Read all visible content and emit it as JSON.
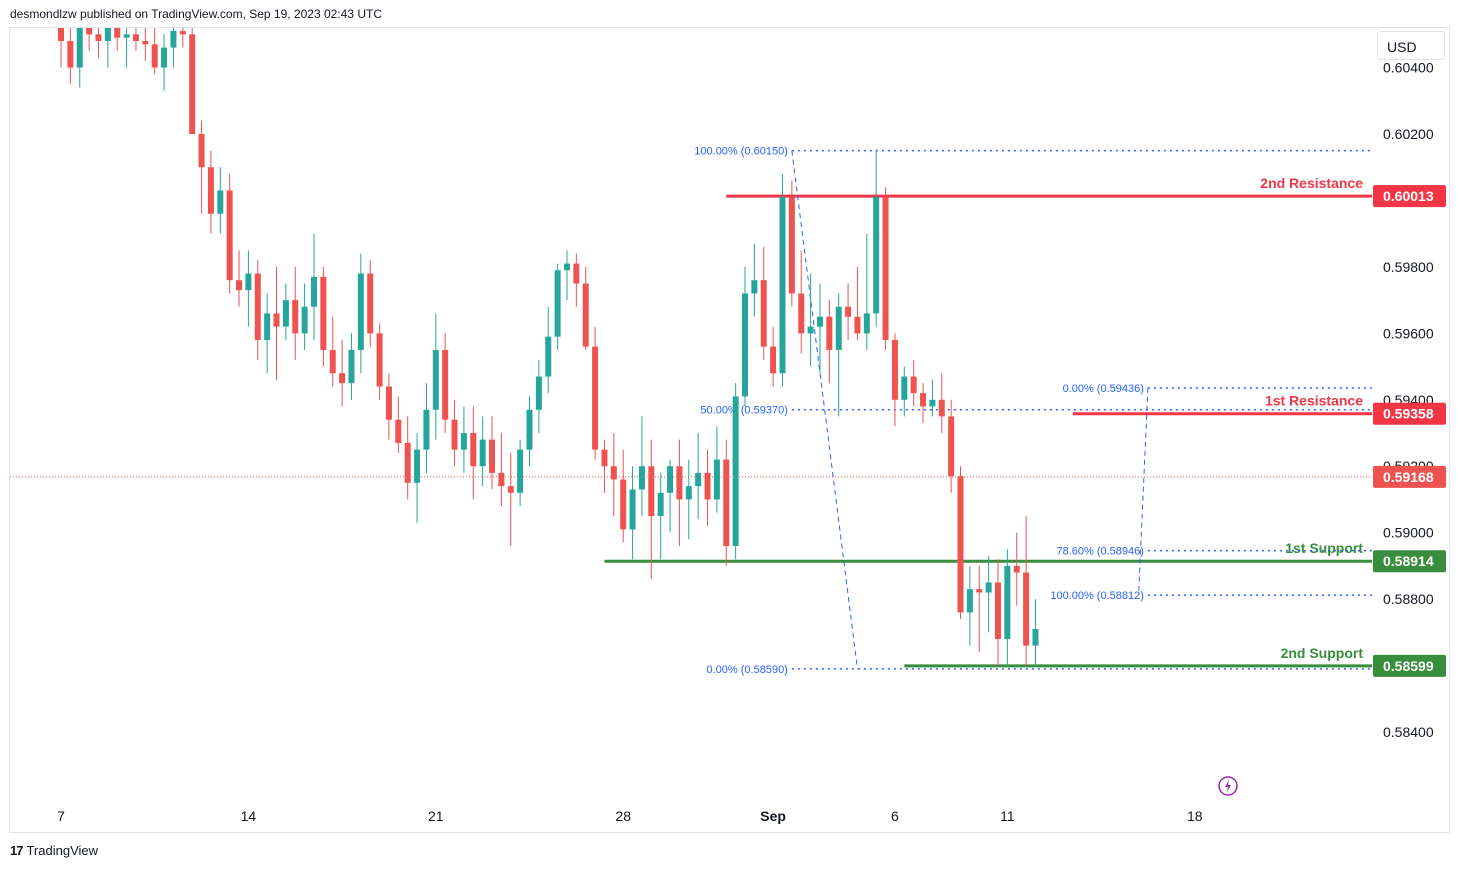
{
  "header": {
    "published_text": "desmondlzw published on TradingView.com, Sep 19, 2023 02:43 UTC"
  },
  "currency_button": {
    "label": "USD"
  },
  "footer": {
    "brand": "TradingView",
    "logo_glyph": "17"
  },
  "colors": {
    "up": "#26a69a",
    "down": "#ef5350",
    "resistance": "#f23645",
    "support": "#388e3c",
    "fib": "#2962ff",
    "fib_text": "#2962ff",
    "price_line": "#ef5350"
  },
  "chart_data": {
    "type": "candlestick",
    "y_axis": {
      "ylim": [
        0.5825,
        0.6045
      ],
      "ticks": [
        "0.60400",
        "0.60200",
        "0.59800",
        "0.59600",
        "0.59400",
        "0.59200",
        "0.59000",
        "0.58800",
        "0.58400"
      ],
      "tick_values": [
        0.604,
        0.602,
        0.598,
        0.596,
        0.594,
        0.592,
        0.59,
        0.588,
        0.584
      ]
    },
    "x_axis": {
      "labels": [
        "7",
        "14",
        "21",
        "28",
        "Sep",
        "6",
        "11",
        "18"
      ],
      "label_bars": [
        0,
        20,
        40,
        60,
        76,
        89,
        101,
        121
      ]
    },
    "levels": [
      {
        "name": "2nd Resistance",
        "label": "2nd Resistance",
        "value": 0.60013,
        "badge": "0.60013",
        "kind": "resistance",
        "from_bar": 71
      },
      {
        "name": "1st Resistance",
        "label": "1st Resistance",
        "value": 0.59358,
        "badge": "0.59358",
        "kind": "resistance",
        "from_bar": 108
      },
      {
        "name": "1st Support",
        "label": "1st Support",
        "value": 0.58914,
        "badge": "0.58914",
        "kind": "support",
        "from_bar": 58
      },
      {
        "name": "2nd Support",
        "label": "2nd Support",
        "value": 0.58599,
        "badge": "0.58599",
        "kind": "support",
        "from_bar": 90
      }
    ],
    "last_price": {
      "value": 0.59168,
      "badge": "0.59168"
    },
    "fib_levels": [
      {
        "label": "100.00% (0.60150)",
        "value": 0.6015,
        "from_bar": 78,
        "group": "A"
      },
      {
        "label": "50.00% (0.59370)",
        "value": 0.5937,
        "from_bar": 78,
        "group": "A"
      },
      {
        "label": "0.00% (0.58590)",
        "value": 0.5859,
        "from_bar": 78,
        "group": "A"
      },
      {
        "label": "0.00% (0.59436)",
        "value": 0.59436,
        "from_bar": 116,
        "group": "B"
      },
      {
        "label": "78.60% (0.58946)",
        "value": 0.58946,
        "from_bar": 116,
        "group": "B"
      },
      {
        "label": "100.00% (0.58812)",
        "value": 0.58812,
        "from_bar": 116,
        "group": "B"
      }
    ],
    "fib_trendlines": [
      {
        "from": [
          78,
          0.6015
        ],
        "to": [
          85,
          0.5859
        ]
      },
      {
        "from": [
          116,
          0.59436
        ],
        "to": [
          115,
          0.58812
        ]
      }
    ],
    "candles": [
      [
        0.6055,
        0.6065,
        0.604,
        0.6048
      ],
      [
        0.6048,
        0.6052,
        0.6035,
        0.604
      ],
      [
        0.604,
        0.6058,
        0.6034,
        0.6052
      ],
      [
        0.6052,
        0.606,
        0.6045,
        0.605
      ],
      [
        0.605,
        0.6055,
        0.6043,
        0.6048
      ],
      [
        0.6048,
        0.606,
        0.604,
        0.6055
      ],
      [
        0.6055,
        0.6062,
        0.6045,
        0.6049
      ],
      [
        0.6049,
        0.6056,
        0.604,
        0.605
      ],
      [
        0.605,
        0.6058,
        0.6045,
        0.6048
      ],
      [
        0.6048,
        0.6055,
        0.6042,
        0.6047
      ],
      [
        0.6047,
        0.6052,
        0.6038,
        0.604
      ],
      [
        0.604,
        0.605,
        0.6033,
        0.6046
      ],
      [
        0.6046,
        0.6056,
        0.604,
        0.6051
      ],
      [
        0.6051,
        0.6059,
        0.6046,
        0.605
      ],
      [
        0.605,
        0.6055,
        0.602,
        0.602
      ],
      [
        0.602,
        0.6024,
        0.5996,
        0.601
      ],
      [
        0.601,
        0.6015,
        0.599,
        0.5996
      ],
      [
        0.5996,
        0.601,
        0.599,
        0.6003
      ],
      [
        0.6003,
        0.6008,
        0.5972,
        0.5976
      ],
      [
        0.5976,
        0.5985,
        0.5968,
        0.5973
      ],
      [
        0.5973,
        0.5985,
        0.5962,
        0.5978
      ],
      [
        0.5978,
        0.5982,
        0.5952,
        0.5958
      ],
      [
        0.5958,
        0.5972,
        0.5948,
        0.5966
      ],
      [
        0.5966,
        0.598,
        0.5946,
        0.5962
      ],
      [
        0.5962,
        0.5975,
        0.5958,
        0.597
      ],
      [
        0.597,
        0.598,
        0.5952,
        0.596
      ],
      [
        0.596,
        0.5975,
        0.5955,
        0.5968
      ],
      [
        0.5968,
        0.599,
        0.5958,
        0.5977
      ],
      [
        0.5977,
        0.598,
        0.595,
        0.5955
      ],
      [
        0.5955,
        0.5965,
        0.5944,
        0.5948
      ],
      [
        0.5948,
        0.5958,
        0.5938,
        0.5945
      ],
      [
        0.5945,
        0.596,
        0.594,
        0.5955
      ],
      [
        0.5955,
        0.5984,
        0.5948,
        0.5978
      ],
      [
        0.5978,
        0.5982,
        0.5956,
        0.596
      ],
      [
        0.596,
        0.5963,
        0.594,
        0.5944
      ],
      [
        0.5944,
        0.5948,
        0.5928,
        0.5934
      ],
      [
        0.5934,
        0.5941,
        0.5924,
        0.5927
      ],
      [
        0.5927,
        0.5935,
        0.591,
        0.5915
      ],
      [
        0.5915,
        0.593,
        0.5903,
        0.5925
      ],
      [
        0.5925,
        0.5945,
        0.5918,
        0.5937
      ],
      [
        0.5937,
        0.5966,
        0.5928,
        0.5955
      ],
      [
        0.5955,
        0.596,
        0.593,
        0.5934
      ],
      [
        0.5934,
        0.594,
        0.592,
        0.5925
      ],
      [
        0.5925,
        0.5938,
        0.5918,
        0.593
      ],
      [
        0.593,
        0.5938,
        0.591,
        0.592
      ],
      [
        0.592,
        0.5935,
        0.5914,
        0.5928
      ],
      [
        0.5928,
        0.5935,
        0.5913,
        0.5918
      ],
      [
        0.5918,
        0.593,
        0.5908,
        0.5914
      ],
      [
        0.5914,
        0.5924,
        0.5896,
        0.5912
      ],
      [
        0.5912,
        0.5928,
        0.5908,
        0.5925
      ],
      [
        0.5925,
        0.5941,
        0.592,
        0.5937
      ],
      [
        0.5937,
        0.5952,
        0.593,
        0.5947
      ],
      [
        0.5947,
        0.5968,
        0.5942,
        0.5959
      ],
      [
        0.5959,
        0.5981,
        0.5955,
        0.5979
      ],
      [
        0.5979,
        0.5985,
        0.597,
        0.5981
      ],
      [
        0.5981,
        0.5984,
        0.5968,
        0.5975
      ],
      [
        0.5975,
        0.598,
        0.5955,
        0.5956
      ],
      [
        0.5956,
        0.5962,
        0.5922,
        0.5925
      ],
      [
        0.5925,
        0.5928,
        0.5912,
        0.592
      ],
      [
        0.592,
        0.593,
        0.5905,
        0.5916
      ],
      [
        0.5916,
        0.5925,
        0.5897,
        0.5901
      ],
      [
        0.5901,
        0.592,
        0.5892,
        0.5913
      ],
      [
        0.5913,
        0.5935,
        0.5905,
        0.592
      ],
      [
        0.592,
        0.5928,
        0.5886,
        0.5905
      ],
      [
        0.5905,
        0.5918,
        0.5892,
        0.5912
      ],
      [
        0.5912,
        0.5922,
        0.59,
        0.592
      ],
      [
        0.592,
        0.5928,
        0.5896,
        0.591
      ],
      [
        0.591,
        0.5922,
        0.5898,
        0.5914
      ],
      [
        0.5914,
        0.593,
        0.5904,
        0.5918
      ],
      [
        0.5918,
        0.5925,
        0.5902,
        0.591
      ],
      [
        0.591,
        0.5932,
        0.5906,
        0.5922
      ],
      [
        0.5922,
        0.5928,
        0.589,
        0.5896
      ],
      [
        0.5896,
        0.5945,
        0.5892,
        0.5941
      ],
      [
        0.5941,
        0.598,
        0.5938,
        0.5972
      ],
      [
        0.5972,
        0.5987,
        0.5965,
        0.5976
      ],
      [
        0.5976,
        0.5986,
        0.5952,
        0.5956
      ],
      [
        0.5956,
        0.5962,
        0.5944,
        0.5948
      ],
      [
        0.5948,
        0.6008,
        0.5944,
        0.6001
      ],
      [
        0.6001,
        0.6006,
        0.5968,
        0.5972
      ],
      [
        0.5972,
        0.5985,
        0.5954,
        0.596
      ],
      [
        0.596,
        0.5978,
        0.595,
        0.5962
      ],
      [
        0.5962,
        0.5975,
        0.5948,
        0.5965
      ],
      [
        0.5965,
        0.597,
        0.5945,
        0.5955
      ],
      [
        0.5955,
        0.5972,
        0.5935,
        0.5968
      ],
      [
        0.5968,
        0.5975,
        0.5958,
        0.5965
      ],
      [
        0.5965,
        0.598,
        0.5958,
        0.596
      ],
      [
        0.596,
        0.599,
        0.5955,
        0.5966
      ],
      [
        0.5966,
        0.6015,
        0.5962,
        0.6001
      ],
      [
        0.6001,
        0.6004,
        0.5955,
        0.5958
      ],
      [
        0.5958,
        0.596,
        0.5932,
        0.594
      ],
      [
        0.594,
        0.595,
        0.5935,
        0.5947
      ],
      [
        0.5947,
        0.5952,
        0.5938,
        0.5942
      ],
      [
        0.5942,
        0.5945,
        0.5933,
        0.5938
      ],
      [
        0.5938,
        0.5946,
        0.5935,
        0.594
      ],
      [
        0.594,
        0.5948,
        0.593,
        0.5935
      ],
      [
        0.5935,
        0.594,
        0.5912,
        0.5917
      ],
      [
        0.5917,
        0.592,
        0.5874,
        0.5876
      ],
      [
        0.5876,
        0.589,
        0.5866,
        0.5883
      ],
      [
        0.5883,
        0.589,
        0.5864,
        0.5882
      ],
      [
        0.5882,
        0.5893,
        0.587,
        0.5885
      ],
      [
        0.5885,
        0.5892,
        0.586,
        0.5868
      ],
      [
        0.5868,
        0.5895,
        0.586,
        0.589
      ],
      [
        0.589,
        0.59,
        0.5878,
        0.5888
      ],
      [
        0.5888,
        0.5905,
        0.586,
        0.5866
      ],
      [
        0.5866,
        0.588,
        0.586,
        0.5871
      ]
    ]
  }
}
